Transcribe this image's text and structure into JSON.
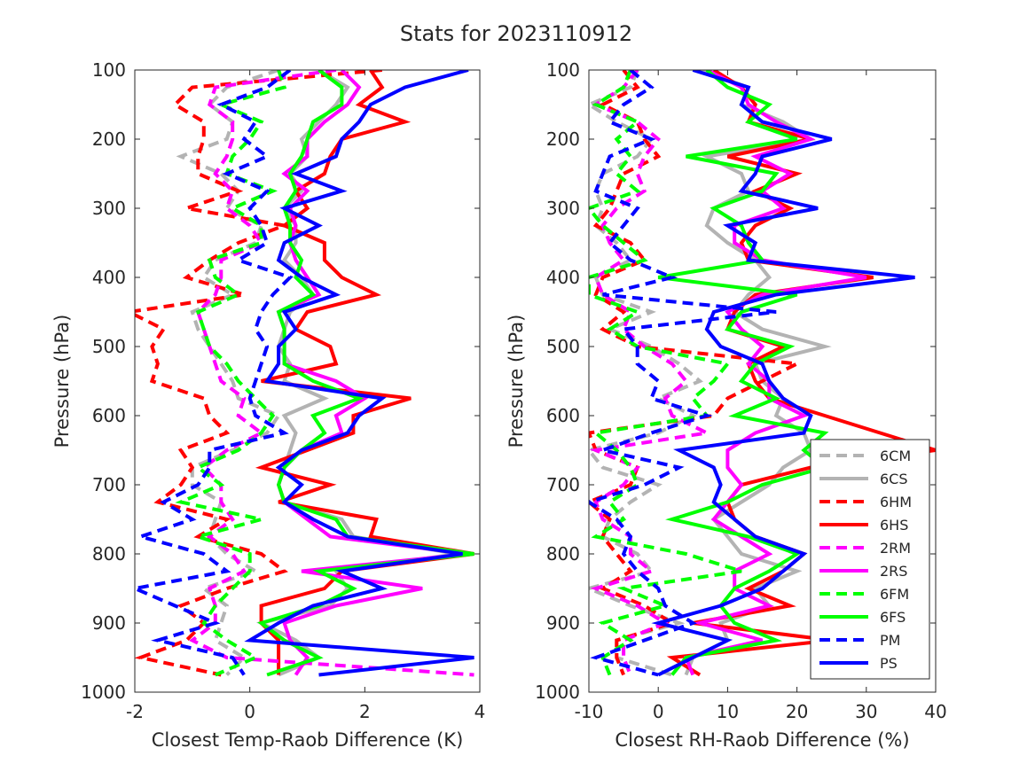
{
  "figure": {
    "title": "Stats for 2023110912"
  },
  "legend": {
    "entries": [
      {
        "label": "6CM",
        "color": "#b3b3b3",
        "dashed": true
      },
      {
        "label": "6CS",
        "color": "#b3b3b3",
        "dashed": false
      },
      {
        "label": "6HM",
        "color": "#ff0000",
        "dashed": true
      },
      {
        "label": "6HS",
        "color": "#ff0000",
        "dashed": false
      },
      {
        "label": "2RM",
        "color": "#ff00ff",
        "dashed": true
      },
      {
        "label": "2RS",
        "color": "#ff00ff",
        "dashed": false
      },
      {
        "label": "6FM",
        "color": "#00ff00",
        "dashed": true
      },
      {
        "label": "6FS",
        "color": "#00ff00",
        "dashed": false
      },
      {
        "label": "PM",
        "color": "#0000ff",
        "dashed": true
      },
      {
        "label": "PS",
        "color": "#0000ff",
        "dashed": false
      }
    ]
  },
  "chart_data": [
    {
      "type": "line",
      "xlabel": "Closest Temp-Raob Difference (K)",
      "ylabel": "Pressure (hPa)",
      "xlim": [
        -2,
        4
      ],
      "ylim": [
        100,
        1000
      ],
      "y_reversed": true,
      "xticks": [
        -2,
        0,
        2,
        4
      ],
      "yticks": [
        100,
        200,
        300,
        400,
        500,
        600,
        700,
        800,
        900,
        1000
      ],
      "grid": false,
      "y": [
        100,
        125,
        150,
        175,
        200,
        225,
        250,
        275,
        300,
        325,
        350,
        375,
        400,
        425,
        450,
        475,
        500,
        525,
        550,
        575,
        600,
        625,
        650,
        675,
        700,
        725,
        750,
        775,
        800,
        825,
        850,
        875,
        900,
        925,
        950,
        975
      ],
      "series": [
        {
          "name": "6CM",
          "x": [
            0.5,
            -0.4,
            -0.7,
            -0.3,
            -0.4,
            -1.2,
            -0.5,
            -0.2,
            -0.4,
            0.2,
            0.1,
            -0.6,
            -0.8,
            -0.3,
            -1.0,
            -0.9,
            -0.7,
            -0.5,
            -0.3,
            -0.2,
            0.5,
            0.3,
            -0.3,
            -1.0,
            -1.0,
            -0.5,
            -0.6,
            -0.7,
            -0.4,
            0.1,
            -0.8,
            -0.4,
            -0.5,
            -0.6,
            -0.1,
            -0.4
          ]
        },
        {
          "name": "6CS",
          "x": [
            1.2,
            1.7,
            1.5,
            1.2,
            0.9,
            1.0,
            0.7,
            0.9,
            0.6,
            0.8,
            0.8,
            0.6,
            0.9,
            1.1,
            0.7,
            0.6,
            0.5,
            0.7,
            0.6,
            1.3,
            0.6,
            0.8,
            0.7,
            0.6,
            0.5,
            0.6,
            1.6,
            1.8,
            3.6,
            1.5,
            1.7,
            1.4,
            0.2,
            0.8,
            1.2,
            0.5
          ]
        },
        {
          "name": "6HM",
          "x": [
            2.3,
            -1.0,
            -1.3,
            -0.8,
            -0.8,
            -0.9,
            -0.9,
            -0.2,
            -1.1,
            0.6,
            -0.2,
            -0.7,
            -1.1,
            -0.1,
            -2.1,
            -1.5,
            -1.7,
            -1.6,
            -1.7,
            -0.8,
            -0.7,
            -0.4,
            -1.2,
            -1.0,
            -1.2,
            -1.6,
            -0.4,
            -0.9,
            0.2,
            0.6,
            -0.4,
            -1.2,
            -0.8,
            -1.1,
            -1.9,
            -0.5
          ]
        },
        {
          "name": "6HS",
          "x": [
            2.1,
            2.3,
            1.9,
            2.7,
            1.6,
            1.4,
            1.3,
            0.8,
            1.0,
            0.6,
            1.3,
            1.3,
            1.6,
            2.2,
            1.0,
            0.8,
            1.4,
            1.5,
            0.2,
            2.8,
            1.8,
            1.8,
            1.0,
            0.2,
            1.4,
            0.5,
            2.2,
            2.1,
            3.9,
            1.6,
            1.3,
            0.2,
            0.2,
            0.5,
            0.5,
            0.5
          ]
        },
        {
          "name": "2RM",
          "x": [
            1.5,
            -0.6,
            -0.7,
            -0.3,
            -0.3,
            -0.4,
            -0.6,
            -0.3,
            -0.4,
            0.0,
            0.2,
            -0.5,
            -0.5,
            -0.6,
            -0.9,
            -0.8,
            -0.7,
            -0.6,
            -0.5,
            -0.1,
            -0.2,
            0.2,
            -0.4,
            -0.8,
            -0.5,
            -0.5,
            -0.3,
            -0.7,
            -0.3,
            -0.1,
            -0.7,
            -0.6,
            -0.6,
            -1.0,
            -0.4,
            3.9
          ]
        },
        {
          "name": "2RS",
          "x": [
            1.6,
            1.9,
            1.7,
            1.3,
            1.0,
            1.0,
            0.6,
            1.0,
            0.7,
            0.8,
            0.7,
            0.8,
            1.0,
            1.2,
            0.5,
            0.6,
            0.6,
            0.6,
            1.5,
            2.0,
            1.5,
            1.6,
            0.9,
            0.6,
            0.5,
            0.6,
            1.0,
            1.4,
            3.8,
            0.9,
            3.0,
            1.5,
            0.6,
            0.7,
            1.0,
            0.8
          ]
        },
        {
          "name": "6FM",
          "x": [
            0.5,
            0.6,
            -0.5,
            0.2,
            0.0,
            -0.3,
            -0.4,
            0.4,
            -0.3,
            0.2,
            0.2,
            -0.7,
            -0.6,
            -0.2,
            -0.9,
            -0.8,
            -0.7,
            -0.4,
            -0.2,
            0.1,
            0.4,
            0.2,
            -0.2,
            -0.9,
            -0.5,
            -1.2,
            0.2,
            -0.9,
            0.0,
            0.0,
            -0.3,
            -0.6,
            -0.8,
            -0.4,
            0.1,
            -0.6
          ]
        },
        {
          "name": "6FS",
          "x": [
            1.2,
            1.6,
            1.6,
            1.1,
            1.0,
            0.9,
            0.7,
            0.8,
            0.6,
            0.7,
            0.7,
            0.9,
            0.8,
            1.1,
            0.5,
            0.6,
            0.6,
            0.6,
            1.1,
            1.9,
            1.1,
            1.3,
            0.9,
            0.6,
            0.5,
            0.6,
            1.5,
            1.7,
            3.9,
            1.2,
            1.8,
            1.2,
            0.2,
            0.6,
            1.2,
            0.3
          ]
        },
        {
          "name": "PM",
          "x": [
            0.7,
            0.3,
            -0.5,
            0.1,
            -0.1,
            0.3,
            -0.4,
            0.3,
            0.0,
            0.2,
            0.3,
            -0.2,
            0.7,
            0.4,
            0.2,
            0.1,
            0.3,
            0.2,
            0.1,
            0.0,
            0.1,
            0.6,
            -0.7,
            -0.7,
            -0.9,
            -1.5,
            -1.0,
            -1.9,
            -0.8,
            -0.4,
            -2.0,
            -1.3,
            -0.6,
            -1.6,
            -0.3,
            -0.1
          ]
        },
        {
          "name": "PS",
          "x": [
            3.8,
            2.7,
            2.1,
            1.9,
            1.6,
            1.5,
            0.8,
            1.6,
            0.6,
            1.2,
            0.6,
            0.5,
            0.9,
            1.5,
            0.6,
            0.8,
            0.5,
            0.5,
            0.3,
            2.3,
            1.9,
            1.7,
            0.9,
            0.5,
            0.9,
            0.6,
            1.1,
            1.7,
            3.7,
            1.6,
            2.3,
            1.1,
            0.5,
            0.0,
            3.9,
            1.2
          ]
        }
      ]
    },
    {
      "type": "line",
      "xlabel": "Closest RH-Raob Difference (%)",
      "ylabel": "Pressure (hPa)",
      "xlim": [
        -10,
        40
      ],
      "ylim": [
        100,
        1000
      ],
      "y_reversed": true,
      "xticks": [
        -10,
        0,
        10,
        20,
        30,
        40
      ],
      "yticks": [
        100,
        200,
        300,
        400,
        500,
        600,
        700,
        800,
        900,
        1000
      ],
      "grid": false,
      "legend_position": "bottom-right",
      "y": [
        100,
        125,
        150,
        175,
        200,
        225,
        250,
        275,
        300,
        325,
        350,
        375,
        400,
        425,
        450,
        475,
        500,
        525,
        550,
        575,
        600,
        625,
        650,
        675,
        700,
        725,
        750,
        775,
        800,
        825,
        850,
        875,
        900,
        925,
        950,
        975
      ],
      "series": [
        {
          "name": "6CM",
          "x": [
            -3,
            -4,
            -10,
            -6,
            -1,
            -3,
            -8,
            -9,
            -8,
            -9,
            -6,
            -4,
            -9,
            -8,
            -1,
            -7,
            -1,
            3,
            6,
            0,
            5,
            0,
            -10,
            -8,
            0,
            -4,
            -7,
            -8,
            -3,
            -1,
            -10,
            -4,
            3,
            -6,
            -6,
            2
          ]
        },
        {
          "name": "6CS",
          "x": [
            6,
            13,
            12,
            18,
            22,
            7,
            12,
            13,
            8,
            7,
            10,
            14,
            16,
            13,
            11,
            15,
            24,
            14,
            15,
            18,
            17,
            21,
            22,
            18,
            16,
            12,
            8,
            10,
            12,
            20,
            14,
            16,
            9,
            10,
            5,
            4
          ]
        },
        {
          "name": "6HM",
          "x": [
            -5,
            -3,
            -8,
            -3,
            -2,
            0,
            -5,
            -6,
            -7,
            -9,
            -4,
            -2,
            -8,
            -9,
            -5,
            -8,
            -3,
            20,
            15,
            10,
            8,
            -10,
            -9,
            -3,
            -4,
            -10,
            -7,
            -8,
            -6,
            -4,
            -8,
            -2,
            2,
            -6,
            -6,
            -5
          ]
        },
        {
          "name": "6HS",
          "x": [
            8,
            12,
            14,
            13,
            22,
            10,
            20,
            14,
            19,
            14,
            12,
            13,
            31,
            14,
            11,
            10,
            18,
            13,
            14,
            16,
            24,
            32,
            40,
            22,
            12,
            10,
            11,
            14,
            21,
            18,
            13,
            19,
            5,
            25,
            2,
            6
          ]
        },
        {
          "name": "2RM",
          "x": [
            -3,
            -5,
            -9,
            -3,
            0,
            -2,
            -3,
            -2,
            -6,
            -8,
            -7,
            -5,
            -9,
            -8,
            -4,
            -5,
            -2,
            2,
            4,
            1,
            2,
            7,
            -9,
            -3,
            -5,
            -9,
            -8,
            -4,
            -4,
            -1,
            -9,
            -3,
            1,
            -5,
            -5,
            -4
          ]
        },
        {
          "name": "2RS",
          "x": [
            7,
            12,
            13,
            17,
            22,
            14,
            19,
            15,
            18,
            11,
            11,
            15,
            30,
            15,
            10,
            12,
            15,
            13,
            16,
            16,
            21,
            14,
            10,
            10,
            12,
            10,
            8,
            12,
            16,
            11,
            11,
            16,
            6,
            15,
            4,
            5
          ]
        },
        {
          "name": "6FM",
          "x": [
            -4,
            -5,
            -9,
            -3,
            -6,
            -4,
            -6,
            -3,
            -10,
            -8,
            -5,
            -2,
            -10,
            -10,
            -3,
            -7,
            -3,
            10,
            8,
            5,
            7,
            -9,
            -6,
            -4,
            -3,
            -7,
            -5,
            -9,
            4,
            12,
            -5,
            1,
            -8,
            -4,
            -8,
            -7
          ]
        },
        {
          "name": "6FS",
          "x": [
            7,
            10,
            16,
            13,
            20,
            4,
            17,
            15,
            8,
            12,
            13,
            15,
            0,
            20,
            12,
            10,
            19,
            14,
            12,
            17,
            11,
            24,
            21,
            24,
            15,
            10,
            2,
            13,
            20,
            16,
            11,
            9,
            11,
            17,
            4,
            2
          ]
        },
        {
          "name": "PM",
          "x": [
            -4,
            -1,
            -5,
            -7,
            -1,
            -7,
            -8,
            -9,
            -3,
            -5,
            -7,
            -4,
            2,
            -8,
            17,
            -5,
            -3,
            -3,
            0,
            -1,
            7,
            -1,
            -8,
            3,
            -2,
            -10,
            -6,
            -4,
            -5,
            -3,
            0,
            1,
            5,
            -2,
            -9,
            0
          ]
        },
        {
          "name": "PS",
          "x": [
            5,
            13,
            12,
            15,
            25,
            15,
            14,
            12,
            23,
            10,
            14,
            13,
            37,
            17,
            8,
            7,
            9,
            15,
            16,
            18,
            22,
            21,
            3,
            8,
            9,
            8,
            11,
            14,
            21,
            18,
            15,
            9,
            0,
            10,
            5,
            0
          ]
        }
      ]
    }
  ]
}
